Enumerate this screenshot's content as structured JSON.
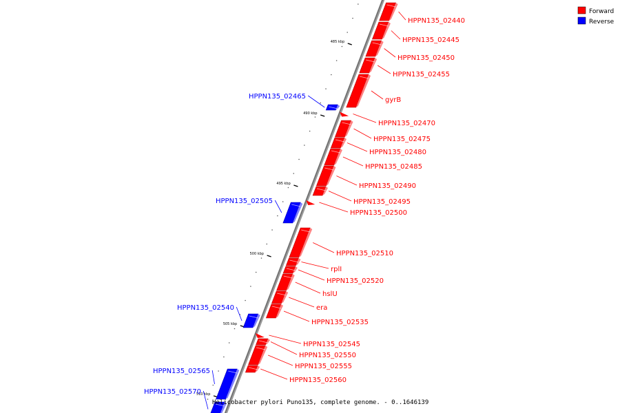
{
  "caption": "Helicobacter pylori Puno135, complete genome. - 0..1646139",
  "legend": [
    {
      "label": "Forward",
      "color": "#ff0000"
    },
    {
      "label": "Reverse",
      "color": "#0000ff"
    }
  ],
  "ticks": [
    "485 kbp",
    "490 kbp",
    "495 kbp",
    "500 kbp",
    "505 kbp",
    "510 kbp"
  ],
  "genes": [
    {
      "name": "HPPN135_02440",
      "strand": "forward"
    },
    {
      "name": "HPPN135_02445",
      "strand": "forward"
    },
    {
      "name": "HPPN135_02450",
      "strand": "forward"
    },
    {
      "name": "HPPN135_02455",
      "strand": "forward"
    },
    {
      "name": "gyrB",
      "strand": "forward"
    },
    {
      "name": "HPPN135_02465",
      "strand": "reverse"
    },
    {
      "name": "HPPN135_02470",
      "strand": "forward"
    },
    {
      "name": "HPPN135_02475",
      "strand": "forward"
    },
    {
      "name": "HPPN135_02480",
      "strand": "forward"
    },
    {
      "name": "HPPN135_02485",
      "strand": "forward"
    },
    {
      "name": "HPPN135_02490",
      "strand": "forward"
    },
    {
      "name": "HPPN135_02495",
      "strand": "forward"
    },
    {
      "name": "HPPN135_02500",
      "strand": "forward"
    },
    {
      "name": "HPPN135_02505",
      "strand": "reverse"
    },
    {
      "name": "HPPN135_02510",
      "strand": "forward"
    },
    {
      "name": "rplI",
      "strand": "forward"
    },
    {
      "name": "HPPN135_02520",
      "strand": "forward"
    },
    {
      "name": "hslU",
      "strand": "forward"
    },
    {
      "name": "era",
      "strand": "forward"
    },
    {
      "name": "HPPN135_02535",
      "strand": "forward"
    },
    {
      "name": "HPPN135_02540",
      "strand": "reverse"
    },
    {
      "name": "HPPN135_02545",
      "strand": "forward"
    },
    {
      "name": "HPPN135_02550",
      "strand": "forward"
    },
    {
      "name": "HPPN135_02555",
      "strand": "forward"
    },
    {
      "name": "HPPN135_02560",
      "strand": "forward"
    },
    {
      "name": "HPPN135_02565",
      "strand": "reverse"
    },
    {
      "name": "HPPN135_02570",
      "strand": "reverse"
    }
  ]
}
